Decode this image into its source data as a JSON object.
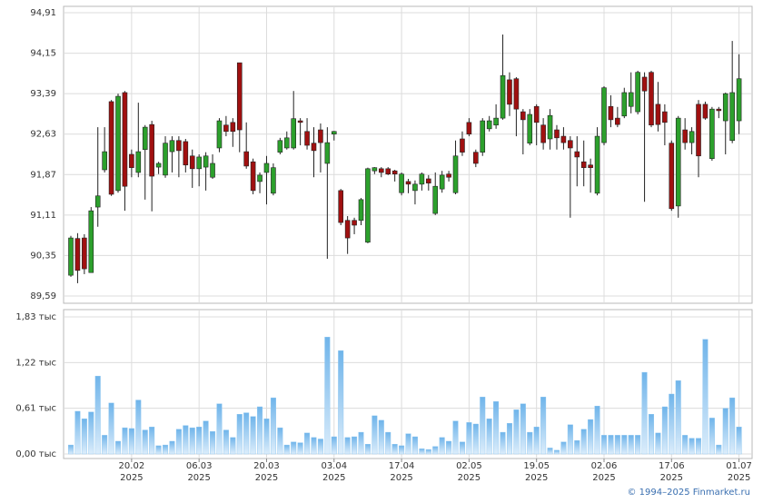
{
  "chart_data": {
    "type": "candlestick",
    "categories": [
      null,
      null,
      null,
      null,
      null,
      null,
      null,
      null,
      null,
      "20.02",
      null,
      null,
      null,
      null,
      null,
      null,
      null,
      null,
      null,
      "06.03",
      null,
      null,
      null,
      null,
      null,
      null,
      null,
      null,
      null,
      "20.03",
      null,
      null,
      null,
      null,
      null,
      null,
      null,
      null,
      null,
      "03.04",
      null,
      null,
      null,
      null,
      null,
      null,
      null,
      null,
      null,
      "17.04",
      null,
      null,
      null,
      null,
      null,
      null,
      null,
      null,
      null,
      "02.05",
      null,
      null,
      null,
      null,
      null,
      null,
      null,
      null,
      null,
      "19.05",
      null,
      null,
      null,
      null,
      null,
      null,
      null,
      null,
      null,
      "02.06",
      null,
      null,
      null,
      null,
      null,
      null,
      null,
      null,
      null,
      "17.06",
      null,
      null,
      null,
      null,
      null,
      null,
      null,
      null,
      null,
      "01.07"
    ],
    "category_year": "2025",
    "open": [
      89.98,
      90.67,
      90.68,
      90.03,
      91.26,
      91.96,
      93.24,
      91.57,
      93.41,
      92.25,
      91.91,
      92.34,
      92.81,
      92.01,
      91.86,
      92.3,
      92.51,
      92.49,
      92.22,
      91.98,
      92.01,
      91.82,
      92.37,
      92.8,
      92.85,
      93.97,
      92.3,
      92.11,
      91.74,
      91.91,
      91.52,
      92.29,
      92.37,
      92.37,
      92.88,
      92.68,
      92.46,
      92.71,
      92.08,
      92.63,
      91.57,
      91.01,
      91.01,
      91.01,
      90.6,
      91.94,
      91.98,
      91.98,
      91.94,
      91.53,
      91.74,
      91.57,
      91.69,
      91.79,
      91.14,
      91.6,
      91.88,
      91.53,
      92.54,
      92.85,
      92.29,
      92.29,
      92.73,
      92.8,
      92.93,
      93.65,
      93.67,
      93.05,
      92.46,
      93.15,
      92.8,
      92.54,
      92.71,
      92.59,
      92.51,
      92.3,
      92.11,
      92.05,
      91.52,
      92.47,
      93.15,
      92.93,
      92.97,
      93.15,
      93.05,
      93.7,
      93.79,
      93.19,
      93.05,
      92.46,
      91.28,
      92.71,
      92.47,
      93.19,
      93.19,
      92.17,
      93.1,
      92.88,
      92.51,
      92.88
    ],
    "high": [
      90.72,
      90.77,
      90.75,
      91.26,
      92.76,
      92.76,
      93.27,
      93.39,
      93.44,
      92.34,
      93.22,
      92.8,
      92.88,
      92.11,
      92.59,
      92.59,
      92.59,
      92.54,
      92.34,
      92.25,
      92.29,
      92.25,
      92.93,
      92.97,
      92.93,
      93.97,
      92.85,
      92.17,
      91.91,
      92.22,
      92.08,
      92.56,
      92.68,
      93.44,
      92.93,
      92.93,
      92.76,
      92.83,
      92.76,
      92.69,
      91.6,
      91.09,
      91.06,
      91.43,
      92.0,
      92.01,
      92.01,
      92.01,
      91.96,
      91.91,
      91.79,
      91.76,
      91.91,
      91.86,
      91.91,
      91.94,
      91.94,
      92.51,
      92.68,
      92.93,
      92.34,
      92.93,
      92.97,
      93.19,
      94.5,
      93.79,
      93.7,
      93.1,
      93.1,
      93.19,
      92.93,
      93.1,
      92.8,
      92.76,
      92.59,
      92.59,
      92.51,
      92.17,
      92.76,
      93.53,
      93.36,
      93.14,
      93.5,
      93.79,
      93.82,
      93.79,
      93.82,
      93.61,
      93.19,
      92.51,
      92.97,
      92.93,
      92.76,
      93.27,
      93.24,
      93.14,
      93.14,
      93.41,
      94.38,
      94.13
    ],
    "low": [
      89.95,
      89.83,
      90.0,
      90.03,
      90.89,
      91.91,
      91.47,
      91.53,
      91.19,
      91.82,
      91.82,
      91.4,
      91.18,
      91.88,
      91.81,
      91.91,
      91.82,
      91.91,
      91.62,
      91.65,
      91.57,
      91.79,
      92.29,
      92.59,
      92.39,
      92.29,
      91.98,
      91.5,
      91.52,
      91.31,
      91.48,
      92.25,
      92.34,
      92.34,
      92.42,
      92.34,
      91.82,
      91.91,
      90.29,
      92.51,
      90.92,
      90.38,
      90.75,
      90.92,
      90.58,
      91.88,
      91.82,
      91.86,
      91.74,
      91.48,
      91.52,
      91.31,
      91.57,
      91.57,
      91.11,
      91.53,
      91.74,
      91.5,
      92.22,
      92.59,
      92.01,
      92.22,
      92.68,
      92.73,
      92.9,
      92.97,
      92.59,
      92.25,
      92.42,
      92.42,
      92.34,
      92.34,
      92.34,
      92.34,
      91.06,
      91.65,
      91.65,
      91.53,
      91.48,
      92.42,
      92.76,
      92.76,
      92.93,
      93.02,
      93.0,
      91.36,
      92.76,
      92.68,
      92.42,
      91.19,
      91.06,
      92.34,
      92.25,
      91.82,
      92.9,
      92.13,
      92.93,
      92.25,
      92.46,
      92.63
    ],
    "close": [
      90.68,
      90.07,
      90.1,
      91.19,
      91.47,
      92.3,
      91.5,
      93.34,
      91.65,
      92.0,
      92.3,
      92.76,
      91.84,
      92.08,
      92.46,
      92.51,
      92.32,
      92.05,
      91.98,
      92.2,
      92.22,
      92.08,
      92.88,
      92.68,
      92.68,
      92.71,
      92.03,
      91.57,
      91.86,
      92.08,
      92.0,
      92.51,
      92.56,
      92.92,
      92.85,
      92.42,
      92.32,
      92.47,
      92.47,
      92.68,
      90.97,
      90.68,
      90.92,
      91.4,
      91.98,
      92.0,
      91.91,
      91.88,
      91.88,
      91.88,
      91.69,
      91.69,
      91.88,
      91.71,
      91.65,
      91.86,
      91.82,
      92.22,
      92.29,
      92.63,
      92.08,
      92.88,
      92.88,
      92.93,
      93.73,
      93.19,
      93.1,
      92.9,
      93.0,
      92.85,
      92.47,
      92.98,
      92.56,
      92.47,
      92.37,
      92.2,
      92.0,
      92.0,
      92.59,
      93.5,
      92.9,
      92.81,
      93.41,
      93.41,
      93.79,
      93.44,
      92.8,
      92.81,
      92.85,
      91.23,
      92.93,
      92.47,
      92.68,
      92.22,
      92.93,
      93.1,
      93.07,
      93.39,
      93.41,
      93.67
    ],
    "volume": [
      0.12,
      0.57,
      0.47,
      0.56,
      1.04,
      0.25,
      0.68,
      0.17,
      0.35,
      0.34,
      0.72,
      0.32,
      0.36,
      0.11,
      0.12,
      0.17,
      0.33,
      0.38,
      0.35,
      0.36,
      0.44,
      0.3,
      0.67,
      0.32,
      0.22,
      0.53,
      0.55,
      0.5,
      0.63,
      0.47,
      0.75,
      0.35,
      0.12,
      0.16,
      0.15,
      0.28,
      0.22,
      0.2,
      1.56,
      0.23,
      1.38,
      0.22,
      0.23,
      0.29,
      0.13,
      0.51,
      0.45,
      0.29,
      0.13,
      0.11,
      0.27,
      0.23,
      0.07,
      0.06,
      0.1,
      0.22,
      0.17,
      0.44,
      0.16,
      0.42,
      0.4,
      0.76,
      0.47,
      0.7,
      0.29,
      0.41,
      0.59,
      0.67,
      0.29,
      0.36,
      0.76,
      0.08,
      0.05,
      0.16,
      0.39,
      0.18,
      0.33,
      0.46,
      0.64,
      0.25,
      0.25,
      0.25,
      0.25,
      0.25,
      0.25,
      1.09,
      0.53,
      0.28,
      0.63,
      0.8,
      0.98,
      0.25,
      0.21,
      0.21,
      1.53,
      0.48,
      0.12,
      0.61,
      0.75,
      0.36
    ],
    "up_color": "#2ca02c",
    "down_color": "#a01010",
    "volume_color": "#8cc6f0",
    "ylim": [
      89.59,
      94.91
    ],
    "yticks": [
      {
        "value": 89.59,
        "label": "89,59"
      },
      {
        "value": 90.35,
        "label": "90,35"
      },
      {
        "value": 91.11,
        "label": "91,11"
      },
      {
        "value": 91.87,
        "label": "91,87"
      },
      {
        "value": 92.63,
        "label": "92,63"
      },
      {
        "value": 93.39,
        "label": "93,39"
      },
      {
        "value": 94.15,
        "label": "94,15"
      },
      {
        "value": 94.91,
        "label": "94,91"
      }
    ],
    "volume_ylim": [
      0,
      1.83
    ],
    "volume_yticks": [
      {
        "value": 0,
        "label": "0,00 тыс"
      },
      {
        "value": 0.61,
        "label": "0,61 тыс"
      },
      {
        "value": 1.22,
        "label": "1,22 тыс"
      },
      {
        "value": 1.83,
        "label": "1,83 тыс"
      }
    ],
    "grid": true,
    "credit": "© 1994–2025 Finmarket.ru"
  }
}
